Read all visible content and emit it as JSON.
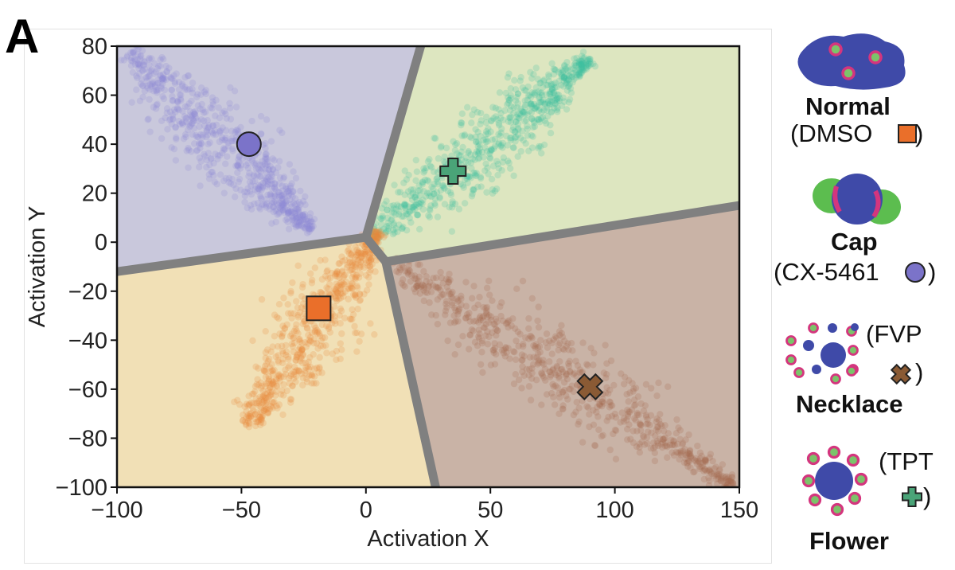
{
  "panel_label": "A",
  "chart_data": {
    "type": "scatter",
    "xlabel": "Activation X",
    "ylabel": "Activation Y",
    "xlim": [
      -100,
      150
    ],
    "ylim": [
      -100,
      80
    ],
    "xticks": [
      -100,
      -50,
      0,
      50,
      100,
      150
    ],
    "xtick_labels": [
      "−100",
      "−50",
      "0",
      "50",
      "100",
      "150"
    ],
    "yticks": [
      80,
      60,
      40,
      20,
      0,
      -20,
      -40,
      -60,
      -80,
      -100
    ],
    "ytick_labels": [
      "80",
      "60",
      "40",
      "20",
      "0",
      "−20",
      "−40",
      "−60",
      "−80",
      "−100"
    ],
    "grid": false,
    "regions": [
      {
        "class": "Cap",
        "color": "#c9c8dc"
      },
      {
        "class": "Flower",
        "color": "#dde6c0"
      },
      {
        "class": "Normal",
        "color": "#f1e0b6"
      },
      {
        "class": "Necklace",
        "color": "#c9b3a6"
      }
    ],
    "boundary_color": "#808080",
    "series": [
      {
        "class": "Cap",
        "color": "#8f87d8",
        "centroid": [
          -47,
          40
        ],
        "marker": "circle",
        "marker_color": "#7b73c9",
        "spread": [
          -95,
          78,
          -22,
          5
        ]
      },
      {
        "class": "Flower",
        "color": "#3cbfa0",
        "centroid": [
          35,
          29
        ],
        "marker": "plus",
        "marker_color": "#4aa478",
        "spread": [
          2,
          2,
          90,
          75
        ]
      },
      {
        "class": "Normal",
        "color": "#e68a3c",
        "centroid": [
          -19,
          -27
        ],
        "marker": "square",
        "marker_color": "#ea6f2a",
        "spread": [
          -48,
          -75,
          5,
          5
        ]
      },
      {
        "class": "Necklace",
        "color": "#a3694f",
        "centroid": [
          90,
          -59
        ],
        "marker": "x",
        "marker_color": "#8a5a34",
        "spread": [
          10,
          -8,
          148,
          -100
        ]
      }
    ]
  },
  "legend": {
    "normal": {
      "name": "Normal",
      "drug_open": "(DMSO",
      "drug_close": ")",
      "marker": "square",
      "color": "#ea6f2a"
    },
    "cap": {
      "name": "Cap",
      "drug_open": "(CX-5461",
      "drug_close": ")",
      "marker": "circle",
      "color": "#7b73c9"
    },
    "necklace": {
      "name": "Necklace",
      "drug_open": "(FVP",
      "drug_close": ")",
      "marker": "x",
      "color": "#8a5a34"
    },
    "flower": {
      "name": "Flower",
      "drug_open": "(TPT",
      "drug_close": ")",
      "marker": "plus",
      "color": "#4aa478"
    }
  }
}
